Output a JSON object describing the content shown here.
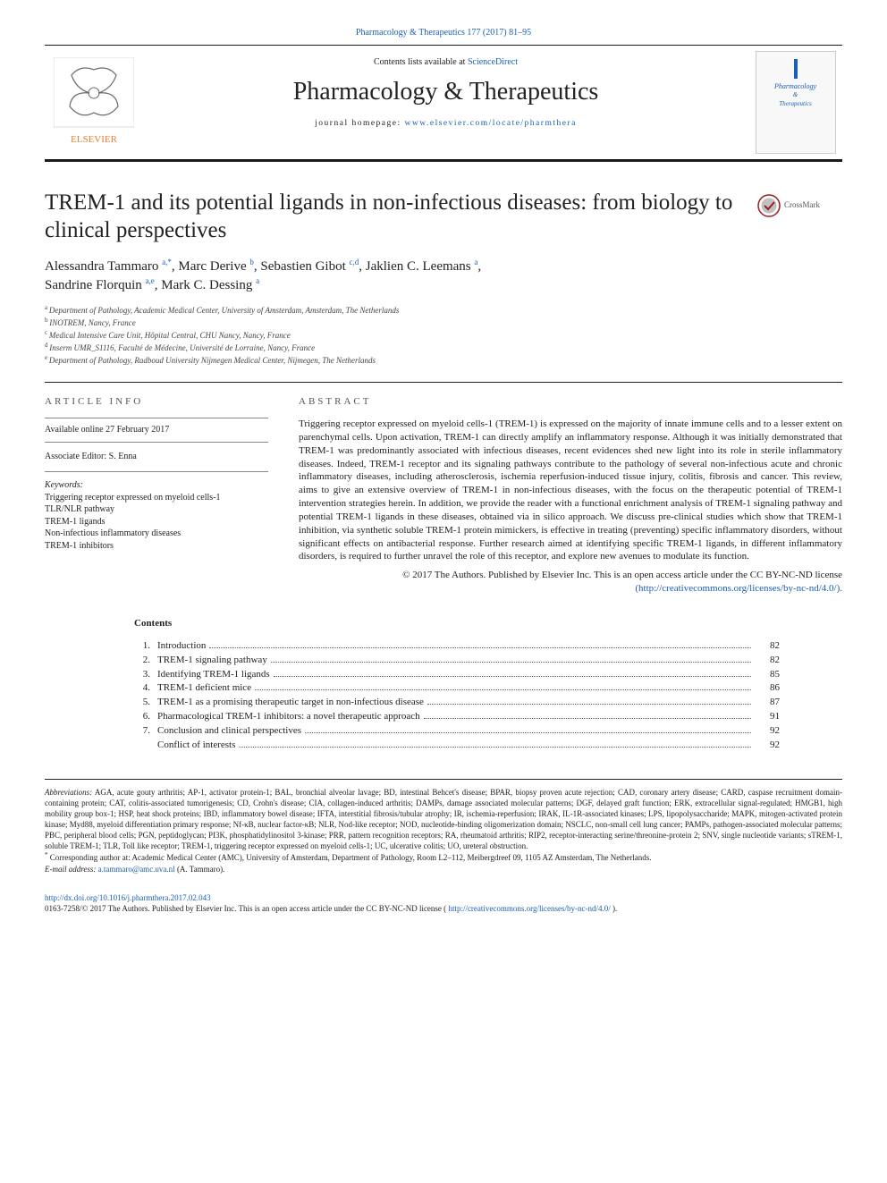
{
  "colors": {
    "link": "#1a5fb4",
    "text": "#222222",
    "muted": "#555555",
    "rule": "#222222",
    "elsevier_orange": "#ed7d31",
    "elsevier_gray": "#6b6b6b"
  },
  "topJournalRef": "Pharmacology & Therapeutics 177 (2017) 81–95",
  "header": {
    "contentsAvailable": "Contents lists available at ",
    "contentsLink": "ScienceDirect",
    "journalTitle": "Pharmacology & Therapeutics",
    "homepageLabel": "journal homepage: ",
    "homepageUrl": "www.elsevier.com/locate/pharmthera",
    "coverLine1": "Pharmacology",
    "coverAmp": "&",
    "coverLine2": "Therapeutics"
  },
  "crossmarkLabel": "CrossMark",
  "article": {
    "title": "TREM-1 and its potential ligands in non-infectious diseases: from biology to clinical perspectives",
    "authors": [
      {
        "name": "Alessandra Tammaro",
        "sup": "a,*"
      },
      {
        "name": "Marc Derive",
        "sup": "b"
      },
      {
        "name": "Sebastien Gibot",
        "sup": "c,d"
      },
      {
        "name": "Jaklien C. Leemans",
        "sup": "a"
      },
      {
        "name": "Sandrine Florquin",
        "sup": "a,e"
      },
      {
        "name": "Mark C. Dessing",
        "sup": "a"
      }
    ],
    "affiliations": [
      {
        "sup": "a",
        "text": "Department of Pathology, Academic Medical Center, University of Amsterdam, Amsterdam, The Netherlands"
      },
      {
        "sup": "b",
        "text": "INOTREM, Nancy, France"
      },
      {
        "sup": "c",
        "text": "Medical Intensive Care Unit, Hôpital Central, CHU Nancy, Nancy, France"
      },
      {
        "sup": "d",
        "text": "Inserm UMR_S1116, Faculté de Médecine, Université de Lorraine, Nancy, France"
      },
      {
        "sup": "e",
        "text": "Department of Pathology, Radboud University Nijmegen Medical Center, Nijmegen, The Netherlands"
      }
    ]
  },
  "info": {
    "sectionHeader": "ARTICLE INFO",
    "available": "Available online 27 February 2017",
    "assocEditor": "Associate Editor: S. Enna",
    "keywordsHeader": "Keywords:",
    "keywords": [
      "Triggering receptor expressed on myeloid cells-1",
      "TLR/NLR pathway",
      "TREM-1 ligands",
      "Non-infectious inflammatory diseases",
      "TREM-1 inhibitors"
    ]
  },
  "abstract": {
    "sectionHeader": "ABSTRACT",
    "text": "Triggering receptor expressed on myeloid cells-1 (TREM-1) is expressed on the majority of innate immune cells and to a lesser extent on parenchymal cells. Upon activation, TREM-1 can directly amplify an inflammatory response. Although it was initially demonstrated that TREM-1 was predominantly associated with infectious diseases, recent evidences shed new light into its role in sterile inflammatory diseases. Indeed, TREM-1 receptor and its signaling pathways contribute to the pathology of several non-infectious acute and chronic inflammatory diseases, including atherosclerosis, ischemia reperfusion-induced tissue injury, colitis, fibrosis and cancer. This review, aims to give an extensive overview of TREM-1 in non-infectious diseases, with the focus on the therapeutic potential of TREM-1 intervention strategies herein. In addition, we provide the reader with a functional enrichment analysis of TREM-1 signaling pathway and potential TREM-1 ligands in these diseases, obtained via in silico approach. We discuss pre-clinical studies which show that TREM-1 inhibition, via synthetic soluble TREM-1 protein mimickers, is effective in treating (preventing) specific inflammatory disorders, without significant effects on antibacterial response. Further research aimed at identifying specific TREM-1 ligands, in different inflammatory disorders, is required to further unravel the role of this receptor, and explore new avenues to modulate its function.",
    "copyright": "© 2017 The Authors. Published by Elsevier Inc. This is an open access article under the CC BY-NC-ND license",
    "licenseUrl": "(http://creativecommons.org/licenses/by-nc-nd/4.0/)."
  },
  "contents": {
    "header": "Contents",
    "rows": [
      {
        "num": "1.",
        "label": "Introduction",
        "page": "82"
      },
      {
        "num": "2.",
        "label": "TREM-1 signaling pathway",
        "page": "82"
      },
      {
        "num": "3.",
        "label": "Identifying TREM-1 ligands",
        "page": "85"
      },
      {
        "num": "4.",
        "label": "TREM-1 deficient mice",
        "page": "86"
      },
      {
        "num": "5.",
        "label": "TREM-1 as a promising therapeutic target in non-infectious disease",
        "page": "87"
      },
      {
        "num": "6.",
        "label": "Pharmacological TREM-1 inhibitors: a novel therapeutic approach",
        "page": "91"
      },
      {
        "num": "7.",
        "label": "Conclusion and clinical perspectives",
        "page": "92"
      },
      {
        "num": "",
        "label": "Conflict of interests",
        "page": "92"
      }
    ]
  },
  "footnotes": {
    "abbrevLabel": "Abbreviations:",
    "abbrevText": "AGA, acute gouty arthritis; AP-1, activator protein-1; BAL, bronchial alveolar lavage; BD, intestinal Behcet's disease; BPAR, biopsy proven acute rejection; CAD, coronary artery disease; CARD, caspase recruitment domain-containing protein; CAT, colitis-associated tumorigenesis; CD, Crohn's disease; CIA, collagen-induced arthritis; DAMPs, damage associated molecular patterns; DGF, delayed graft function; ERK, extracellular signal-regulated; HMGB1, high mobility group box-1; HSP, heat shock proteins; IBD, inflammatory bowel disease; IFTA, interstitial fibrosis/tubular atrophy; IR, ischemia-reperfusion; IRAK, IL-1R-associated kinases; LPS, lipopolysaccharide; MAPK, mitogen-activated protein kinase; Myd88, myeloid differentiation primary response; Nf-κB, nuclear factor-κB; NLR, Nod-like receptor; NOD, nucleotide-binding oligomerization domain; NSCLC, non-small cell lung cancer; PAMPs, pathogen-associated molecular patterns; PBC, peripheral blood cells; PGN, peptidoglycan; PI3K, phosphatidylinositol 3-kinase; PRR, pattern recognition receptors; RA, rheumatoid arthritis; RIP2, receptor-interacting serine/threonine-protein 2; SNV, single nucleotide variants; sTREM-1, soluble TREM-1; TLR, Toll like receptor; TREM-1, triggering receptor expressed on myeloid cells-1; UC, ulcerative colitis; UO, ureteral obstruction.",
    "correspLabel": "*",
    "correspText": "Corresponding author at: Academic Medical Center (AMC), University of Amsterdam, Department of Pathology, Room L2–112, Meibergdreef 09, 1105 AZ Amsterdam, The Netherlands.",
    "emailLabel": "E-mail address:",
    "email": "a.tammaro@amc.uva.nl",
    "emailPerson": "(A. Tammaro)."
  },
  "bottom": {
    "doi": "http://dx.doi.org/10.1016/j.pharmthera.2017.02.043",
    "issn": "0163-7258/© 2017 The Authors. Published by Elsevier Inc. This is an open access article under the CC BY-NC-ND license (",
    "licenseUrl": "http://creativecommons.org/licenses/by-nc-nd/4.0/",
    "issnSuffix": ")."
  }
}
